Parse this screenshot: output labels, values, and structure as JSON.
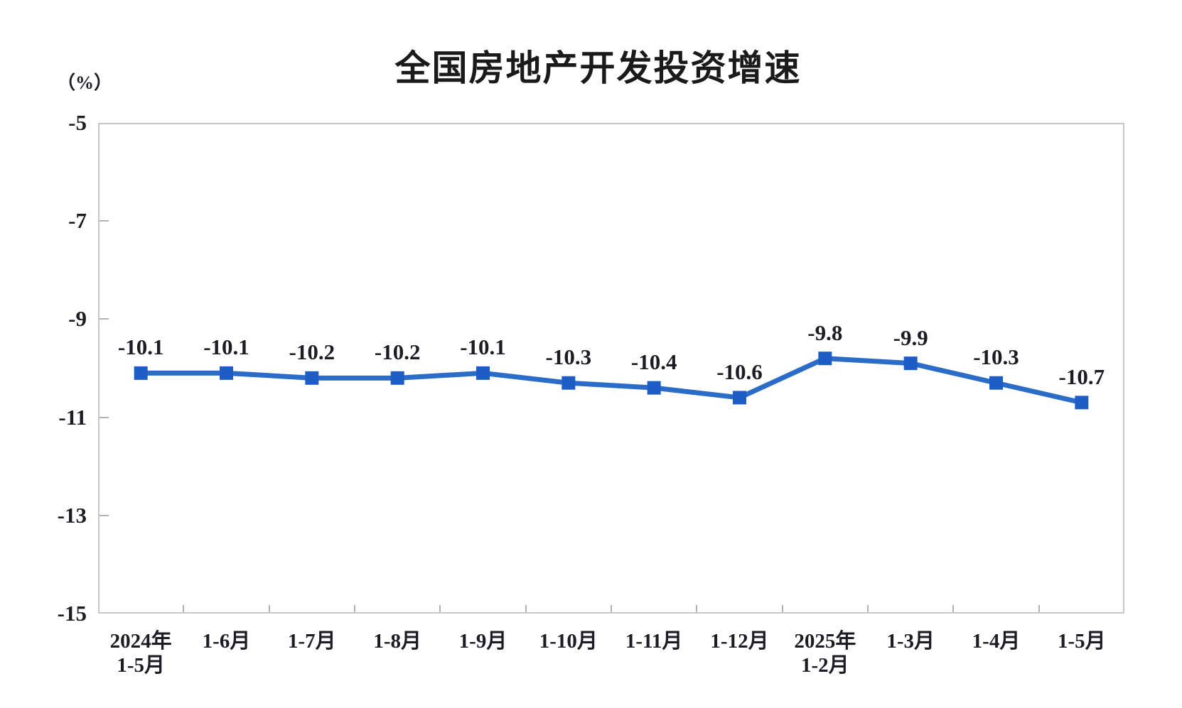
{
  "chart_data": {
    "type": "line",
    "title": "全国房地产开发投资增速",
    "unit_label": "（%）",
    "categories": [
      [
        "2024年",
        "1-5月"
      ],
      [
        "1-6月"
      ],
      [
        "1-7月"
      ],
      [
        "1-8月"
      ],
      [
        "1-9月"
      ],
      [
        "1-10月"
      ],
      [
        "1-11月"
      ],
      [
        "1-12月"
      ],
      [
        "2025年",
        "1-2月"
      ],
      [
        "1-3月"
      ],
      [
        "1-4月"
      ],
      [
        "1-5月"
      ]
    ],
    "series": [
      {
        "name": "全国房地产开发投资增速",
        "values": [
          -10.1,
          -10.1,
          -10.2,
          -10.2,
          -10.1,
          -10.3,
          -10.4,
          -10.6,
          -9.8,
          -9.9,
          -10.3,
          -10.7
        ],
        "point_labels": [
          "-10.1",
          "-10.1",
          "-10.2",
          "-10.2",
          "-10.1",
          "-10.3",
          "-10.4",
          "-10.6",
          "-9.8",
          "-9.9",
          "-10.3",
          "-10.7"
        ]
      }
    ],
    "ylim": [
      -15,
      -5
    ],
    "yticks": [
      -5,
      -7,
      -9,
      -11,
      -13,
      -15
    ],
    "grid": false,
    "legend": "none",
    "marker_shape": "square",
    "style": {
      "line_color": "#2c6cc9",
      "marker_color": "#1d5ec6",
      "frame_color": "#c7c7c7",
      "tick_color": "#b3b3b3",
      "text_color": "#1c1c24",
      "title_color": "#1a1a1a"
    }
  }
}
